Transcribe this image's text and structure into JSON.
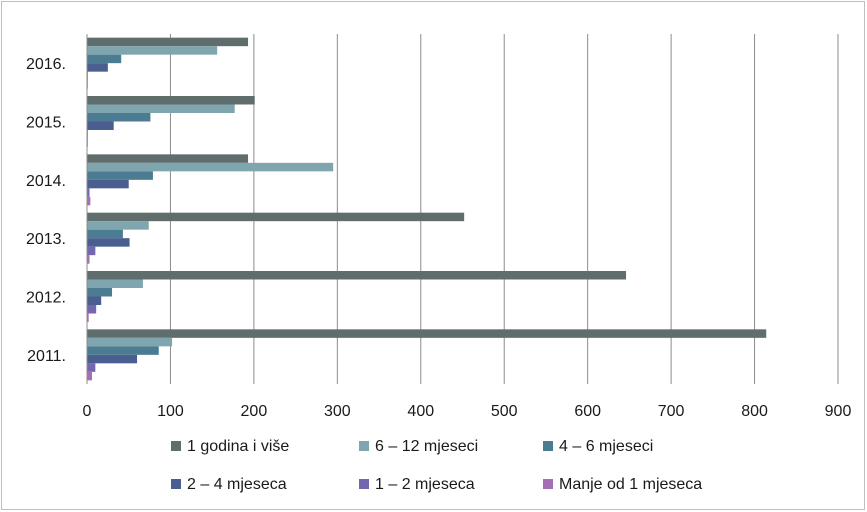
{
  "chart_data": {
    "type": "bar",
    "orientation": "horizontal",
    "categories": [
      "2016.",
      "2015.",
      "2014.",
      "2013.",
      "2012.",
      "2011."
    ],
    "series": [
      {
        "name": "1 godina i više",
        "color": "#5f6d6d",
        "values": [
          193,
          201,
          193,
          452,
          646,
          814
        ]
      },
      {
        "name": "6 – 12 mjeseci",
        "color": "#7fa5ae",
        "values": [
          156,
          177,
          295,
          74,
          67,
          102
        ]
      },
      {
        "name": "4 – 6 mjeseci",
        "color": "#4b7c91",
        "values": [
          41,
          76,
          79,
          43,
          30,
          86
        ]
      },
      {
        "name": "2 – 4 mjeseca",
        "color": "#4a5f8f",
        "values": [
          25,
          32,
          50,
          51,
          17,
          60
        ]
      },
      {
        "name": "1 – 2 mjeseca",
        "color": "#7467b0",
        "values": [
          1,
          1,
          3,
          10,
          11,
          10
        ]
      },
      {
        "name": "Manje od 1 mjeseca",
        "color": "#a46fb3",
        "values": [
          1,
          1,
          4,
          3,
          2,
          6
        ]
      }
    ],
    "xlim": [
      0,
      900
    ],
    "xticks": [
      "0",
      "100",
      "200",
      "300",
      "400",
      "500",
      "600",
      "700",
      "800",
      "900"
    ],
    "grid": true,
    "legend_position": "bottom"
  }
}
